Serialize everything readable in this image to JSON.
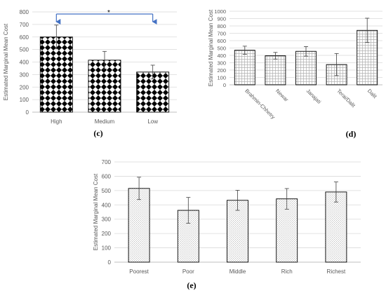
{
  "chart_data": [
    {
      "panel_label": "(c)",
      "type": "bar",
      "ylabel": "Estimated Marginal Mean Cost",
      "ylim": [
        0,
        800
      ],
      "yticks": [
        0,
        100,
        200,
        300,
        400,
        500,
        600,
        700,
        800
      ],
      "categories": [
        "High",
        "Medium",
        "Low"
      ],
      "values": [
        600,
        415,
        320
      ],
      "errors": [
        95,
        70,
        55
      ],
      "pattern": "checkerboard",
      "grid": true,
      "annotation": {
        "type": "significance_bracket",
        "from": "High",
        "to": "Low",
        "label": "*",
        "color": "#4472c4"
      }
    },
    {
      "panel_label": "(d)",
      "type": "bar",
      "ylabel": "Estimated Marginal Mean Cost",
      "ylim": [
        0,
        1000
      ],
      "yticks": [
        0,
        100,
        200,
        300,
        400,
        500,
        600,
        700,
        800,
        900,
        1000
      ],
      "categories": [
        "Brahmin-Chhetry",
        "Newar",
        "Janajati",
        "Terai/Dalit",
        "Dalit"
      ],
      "values": [
        470,
        395,
        455,
        275,
        740
      ],
      "errors": [
        55,
        45,
        65,
        150,
        165
      ],
      "pattern": "grid-lines",
      "grid": true
    },
    {
      "panel_label": "(e)",
      "type": "bar",
      "ylabel": "Estimated Marginal Mean Cost",
      "ylim": [
        0,
        700
      ],
      "yticks": [
        0,
        100,
        200,
        300,
        400,
        500,
        600,
        700
      ],
      "categories": [
        "Poorest",
        "Poor",
        "Middle",
        "Rich",
        "Richest"
      ],
      "values": [
        515,
        362,
        432,
        442,
        490
      ],
      "errors": [
        78,
        90,
        70,
        72,
        70
      ],
      "pattern": "dots",
      "grid": true
    }
  ]
}
